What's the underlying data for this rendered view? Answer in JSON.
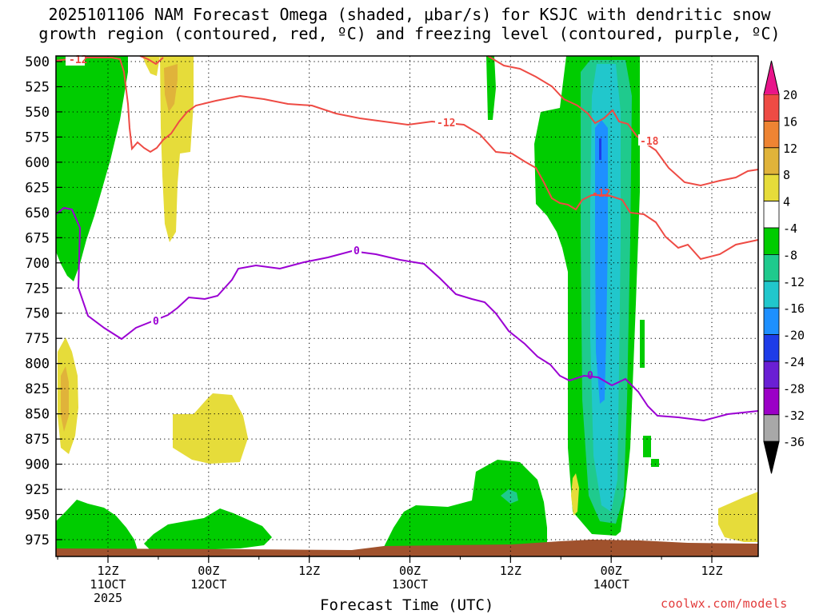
{
  "title_line1": "2025101106 NAM Forecast Omega (shaded, μbar/s) for KSJC with dendritic snow",
  "title_line2": "growth region (contoured, red, ºC) and freezing level (contoured, purple, ºC)",
  "xlabel": "Forecast Time (UTC)",
  "credit": "coolwx.com/models",
  "colors": {
    "terrain": "#a0522d",
    "dgz_contour": "#ee4b44",
    "freezing_contour": "#9b00d3",
    "grid": "#000000"
  },
  "chart_data": {
    "type": "heatmap",
    "title": "2025101106 NAM Forecast Omega (shaded, μbar/s) for KSJC with dendritic snow growth region (contoured, red, ºC) and freezing level (contoured, purple, ºC)",
    "xlabel": "Forecast Time (UTC)",
    "ylabel": "",
    "y_ticks": [
      500,
      525,
      550,
      575,
      600,
      625,
      650,
      675,
      700,
      725,
      750,
      775,
      800,
      825,
      850,
      875,
      900,
      925,
      950,
      975
    ],
    "y_range": [
      1000,
      500
    ],
    "x_ticks": [
      {
        "hour": 6,
        "line1": "12Z",
        "line2": "11OCT",
        "line3": "2025"
      },
      {
        "hour": 18,
        "line1": "00Z",
        "line2": "12OCT",
        "line3": ""
      },
      {
        "hour": 30,
        "line1": "12Z",
        "line2": "",
        "line3": ""
      },
      {
        "hour": 42,
        "line1": "00Z",
        "line2": "13OCT",
        "line3": ""
      },
      {
        "hour": 54,
        "line1": "12Z",
        "line2": "",
        "line3": ""
      },
      {
        "hour": 66,
        "line1": "00Z",
        "line2": "14OCT",
        "line3": ""
      },
      {
        "hour": 78,
        "line1": "12Z",
        "line2": "",
        "line3": ""
      }
    ],
    "x_range_hours": [
      0,
      84
    ],
    "grid": true,
    "colorbar": {
      "levels": [
        {
          "label": "20",
          "color": "#ff2070"
        },
        {
          "label": "16",
          "color": "#ee4b44"
        },
        {
          "label": "12",
          "color": "#ee8433"
        },
        {
          "label": "8",
          "color": "#e0b33a"
        },
        {
          "label": "4",
          "color": "#e6dc3a"
        },
        {
          "label": "-4",
          "color": "#ffffff"
        },
        {
          "label": "-8",
          "color": "#00cc00"
        },
        {
          "label": "-12",
          "color": "#1fca8d"
        },
        {
          "label": "-16",
          "color": "#21c7cc"
        },
        {
          "label": "-20",
          "color": "#1e90ff"
        },
        {
          "label": "-24",
          "color": "#1e3ce8"
        },
        {
          "label": "-28",
          "color": "#6a1fd4"
        },
        {
          "label": "-32",
          "color": "#9b00c6"
        },
        {
          "label": "-36",
          "color": "#a8a8a8"
        }
      ],
      "top_triangle_color": "#e8148a",
      "bottom_triangle_color": "#000000"
    },
    "contours": [
      {
        "name": "dgz-contour-label",
        "value": "-12",
        "color": "#ee4b44"
      },
      {
        "name": "dgz-contour-label",
        "value": "-12",
        "color": "#ee4b44"
      },
      {
        "name": "dgz-contour-label",
        "value": "-12",
        "color": "#ee4b44"
      },
      {
        "name": "dgz-contour-label",
        "value": "-18",
        "color": "#ee4b44"
      },
      {
        "name": "freezing-contour-label",
        "value": "0",
        "color": "#9b00d3"
      },
      {
        "name": "freezing-contour-label",
        "value": "0",
        "color": "#9b00d3"
      },
      {
        "name": "freezing-contour-label",
        "value": "0",
        "color": "#9b00d3"
      }
    ]
  }
}
